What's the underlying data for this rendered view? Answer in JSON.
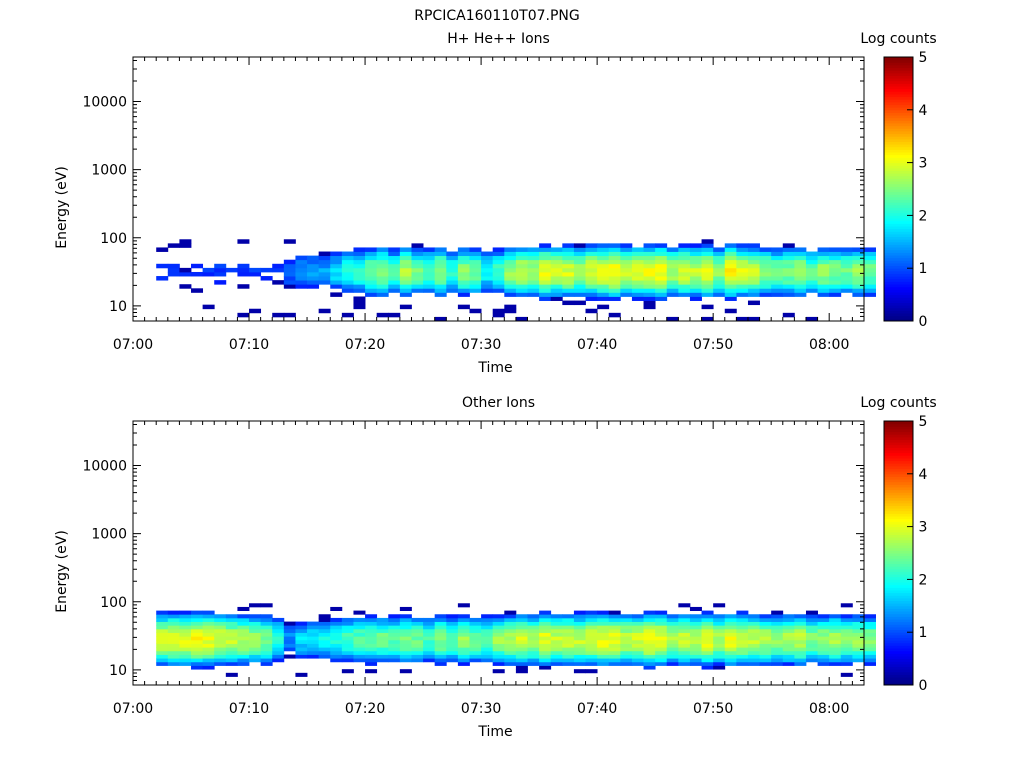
{
  "figure": {
    "title": "RPCICA160110T07.PNG"
  },
  "chart_data": [
    {
      "type": "heatmap",
      "title": "H+ He++ Ions",
      "xlabel": "Time",
      "ylabel": "Energy (eV)",
      "x_ticks": [
        "07:00",
        "07:10",
        "07:20",
        "07:30",
        "07:40",
        "07:50",
        "08:00"
      ],
      "xlim": [
        "07:00",
        "08:03"
      ],
      "y_scale": "log",
      "ylim": [
        6,
        45000
      ],
      "y_ticks": [
        "10",
        "100",
        "1000",
        "10000"
      ],
      "colorbar": {
        "label": "Log counts",
        "range": [
          0,
          5
        ],
        "ticks": [
          "0",
          "1",
          "2",
          "3",
          "4",
          "5"
        ],
        "colormap": "jet"
      },
      "energy_band_eV": [
        6,
        95
      ],
      "time_bin_minutes": 1,
      "time_start": "07:02",
      "time_end": "08:03",
      "peak_energy_eV": 32,
      "peak_log_counts_by_minute": [
        1.0,
        1.0,
        0.9,
        1.0,
        1.0,
        1.1,
        1.0,
        1.0,
        1.0,
        1.0,
        1.0,
        1.4,
        1.6,
        1.7,
        1.6,
        1.9,
        2.2,
        2.3,
        2.6,
        2.8,
        2.4,
        2.9,
        2.6,
        2.5,
        2.8,
        2.3,
        2.7,
        2.6,
        2.1,
        2.4,
        2.8,
        3.0,
        2.9,
        3.2,
        3.0,
        3.1,
        2.9,
        3.1,
        3.2,
        3.3,
        3.0,
        3.1,
        3.2,
        3.3,
        2.9,
        3.1,
        3.0,
        3.2,
        2.8,
        3.3,
        3.1,
        3.0,
        2.8,
        2.6,
        2.7,
        2.9,
        2.5,
        2.8,
        2.7,
        2.6,
        2.8,
        2.6
      ]
    },
    {
      "type": "heatmap",
      "title": "Other Ions",
      "xlabel": "Time",
      "ylabel": "Energy (eV)",
      "x_ticks": [
        "07:00",
        "07:10",
        "07:20",
        "07:30",
        "07:40",
        "07:50",
        "08:00"
      ],
      "xlim": [
        "07:00",
        "08:03"
      ],
      "y_scale": "log",
      "ylim": [
        6,
        45000
      ],
      "y_ticks": [
        "10",
        "100",
        "1000",
        "10000"
      ],
      "colorbar": {
        "label": "Log counts",
        "range": [
          0,
          5
        ],
        "ticks": [
          "0",
          "1",
          "2",
          "3",
          "4",
          "5"
        ],
        "colormap": "jet"
      },
      "energy_band_eV": [
        8,
        95
      ],
      "time_bin_minutes": 1,
      "time_start": "07:02",
      "time_end": "08:03",
      "peak_energy_eV": 28,
      "peak_log_counts_by_minute": [
        3.1,
        3.2,
        3.2,
        3.3,
        3.2,
        3.1,
        3.0,
        2.9,
        2.8,
        2.7,
        2.3,
        1.5,
        1.9,
        2.0,
        2.1,
        2.2,
        2.4,
        2.5,
        2.6,
        2.6,
        2.5,
        2.7,
        2.6,
        2.4,
        2.7,
        2.5,
        2.8,
        2.6,
        2.5,
        2.8,
        2.9,
        3.1,
        2.9,
        3.2,
        3.0,
        3.1,
        3.0,
        3.1,
        3.2,
        3.2,
        3.0,
        3.1,
        3.3,
        3.2,
        2.9,
        3.1,
        3.0,
        3.2,
        2.9,
        3.2,
        3.1,
        3.0,
        2.9,
        2.8,
        2.9,
        3.0,
        2.7,
        2.8,
        2.9,
        2.7,
        2.8,
        2.7
      ]
    }
  ]
}
